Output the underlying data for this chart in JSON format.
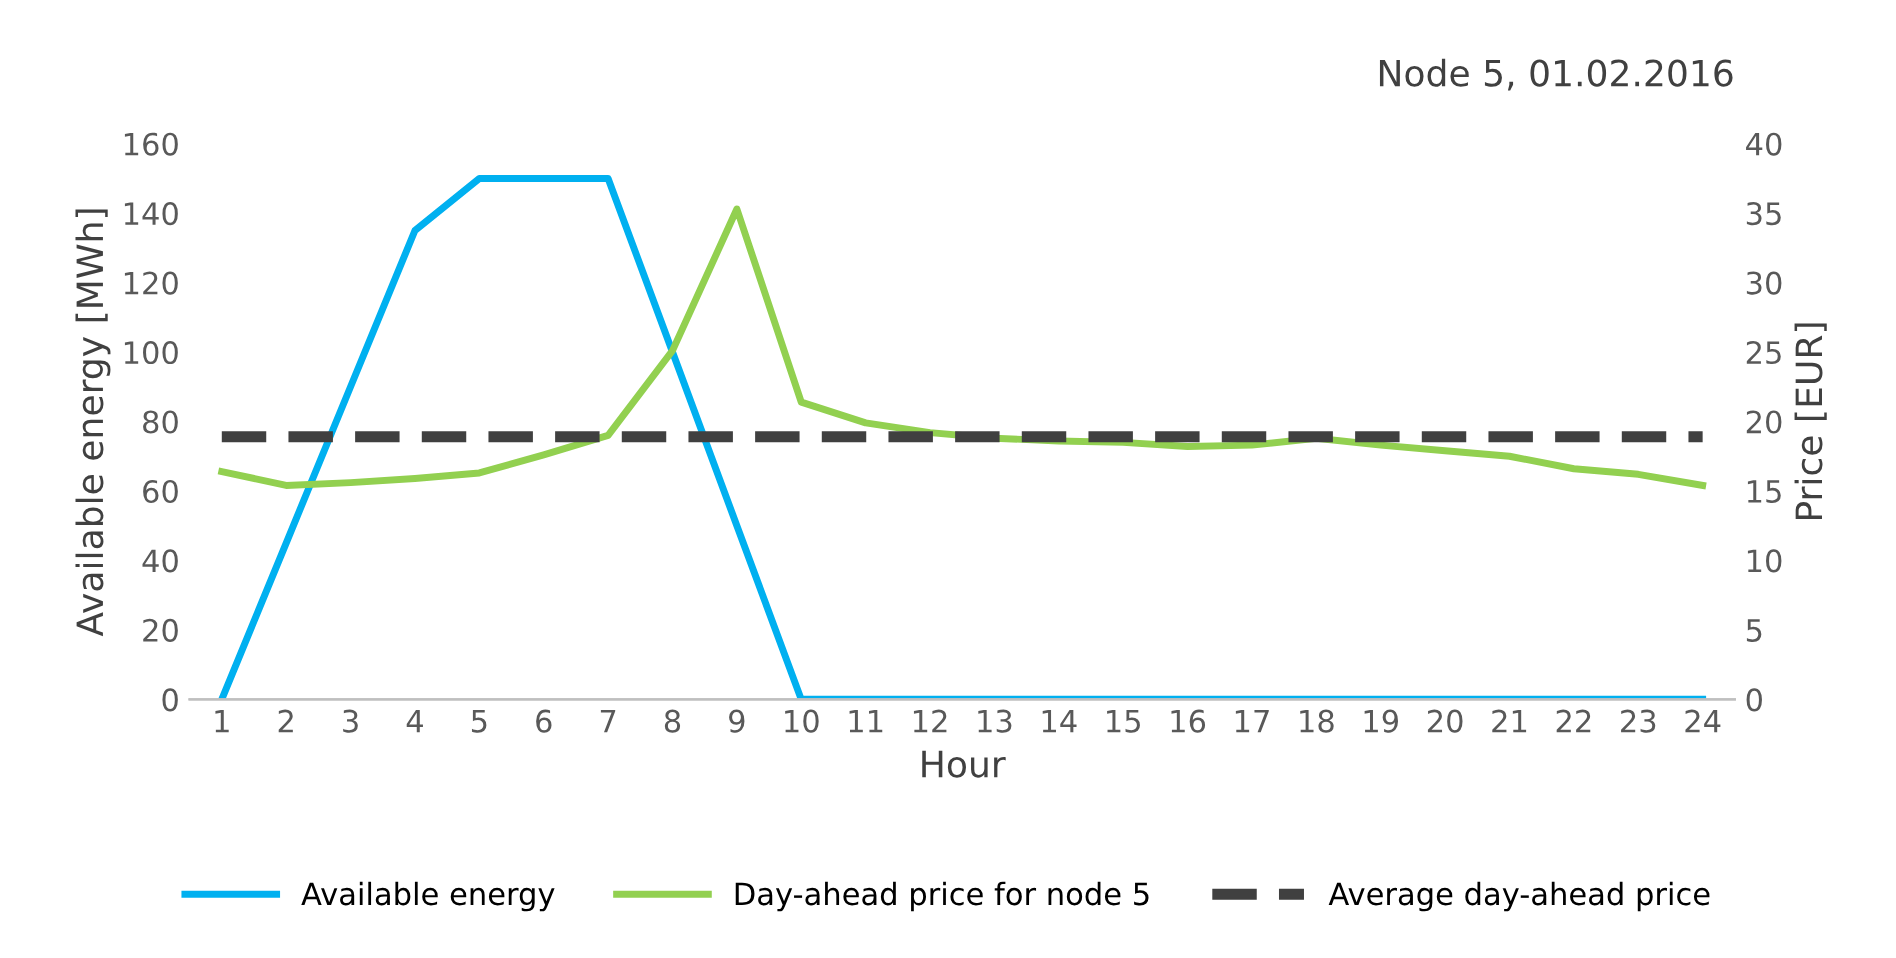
{
  "chart_data": {
    "type": "line",
    "title": "Node 5, 01.02.2016",
    "xlabel": "Hour",
    "ylabel": "Available energy [MWh]",
    "y2label": "Price [EUR]",
    "categories": [
      "1",
      "2",
      "3",
      "4",
      "5",
      "6",
      "7",
      "8",
      "9",
      "10",
      "11",
      "12",
      "13",
      "14",
      "15",
      "16",
      "17",
      "18",
      "19",
      "20",
      "21",
      "22",
      "23",
      "24"
    ],
    "series": [
      {
        "name": "Available energy",
        "color": "#00b0f0",
        "values": [
          0,
          45,
          90,
          135,
          150,
          150,
          150,
          100,
          50,
          0,
          0,
          0,
          0,
          0,
          0,
          0,
          0,
          0,
          0,
          0,
          0,
          0,
          0,
          0
        ]
      },
      {
        "name": "Day-ahead price for node 5",
        "color": "#92d050",
        "axis": "y2",
        "values": [
          16.4,
          15.4,
          15.6,
          15.9,
          16.3,
          17.6,
          19.0,
          25.1,
          35.3,
          21.4,
          19.9,
          19.2,
          18.8,
          18.6,
          18.5,
          18.2,
          18.3,
          18.8,
          18.3,
          17.9,
          17.5,
          16.6,
          16.2,
          15.4
        ]
      },
      {
        "name": "Average day-ahead price",
        "color": "#404040",
        "axis": "y2",
        "line_style": "dashed",
        "values": [
          18.9,
          18.9,
          18.9,
          18.9,
          18.9,
          18.9,
          18.9,
          18.9,
          18.9,
          18.9,
          18.9,
          18.9,
          18.9,
          18.9,
          18.9,
          18.9,
          18.9,
          18.9,
          18.9,
          18.9,
          18.9,
          18.9,
          18.9,
          18.9
        ]
      }
    ],
    "ylim": [
      0,
      160
    ],
    "yticks": [
      0,
      20,
      40,
      60,
      80,
      100,
      120,
      140,
      160
    ],
    "y2lim": [
      0,
      40
    ],
    "y2ticks": [
      0,
      5,
      10,
      15,
      20,
      25,
      30,
      35,
      40
    ],
    "grid": false,
    "legend": "bottom"
  }
}
